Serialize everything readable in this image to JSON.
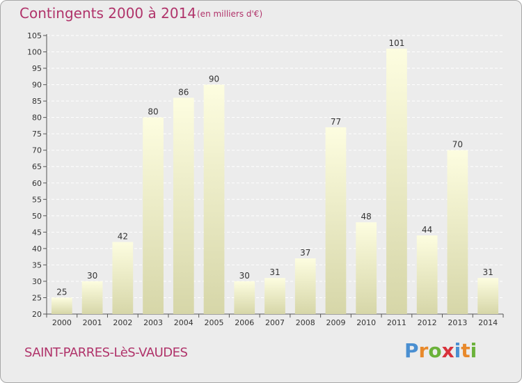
{
  "header": {
    "title": "Contingents 2000 à 2014",
    "subtitle": "(en milliers d'€)"
  },
  "footer": {
    "commune": "SAINT-PARRES-LèS-VAUDES",
    "brand_letters": [
      "P",
      "r",
      "o",
      "x",
      "i",
      "t",
      "i"
    ],
    "brand_colors": [
      "#4a8fd1",
      "#e8892b",
      "#6bb23a",
      "#d8323b",
      "#4a8fd1",
      "#e8892b",
      "#6bb23a"
    ]
  },
  "chart_data": {
    "type": "bar",
    "categories": [
      "2000",
      "2001",
      "2002",
      "2003",
      "2004",
      "2005",
      "2006",
      "2007",
      "2008",
      "2009",
      "2010",
      "2011",
      "2012",
      "2013",
      "2014"
    ],
    "values": [
      25,
      30,
      42,
      80,
      86,
      90,
      30,
      31,
      37,
      77,
      48,
      101,
      44,
      70,
      31
    ],
    "data_labels": [
      "25",
      "30",
      "42",
      "80",
      "86",
      "90",
      "30",
      "31",
      "37",
      "77",
      "48",
      "101",
      "44",
      "70",
      "31"
    ],
    "title": "Contingents 2000 à 2014",
    "subtitle": "(en milliers d'€)",
    "ylim": [
      20,
      105
    ],
    "yticks": [
      "20",
      "25",
      "30",
      "35",
      "40",
      "45",
      "50",
      "55",
      "60",
      "65",
      "70",
      "75",
      "80",
      "85",
      "90",
      "95",
      "100",
      "105"
    ],
    "grid": true,
    "bar_color_top": "#fdfde0",
    "bar_color_bottom": "#d6d6a8"
  }
}
